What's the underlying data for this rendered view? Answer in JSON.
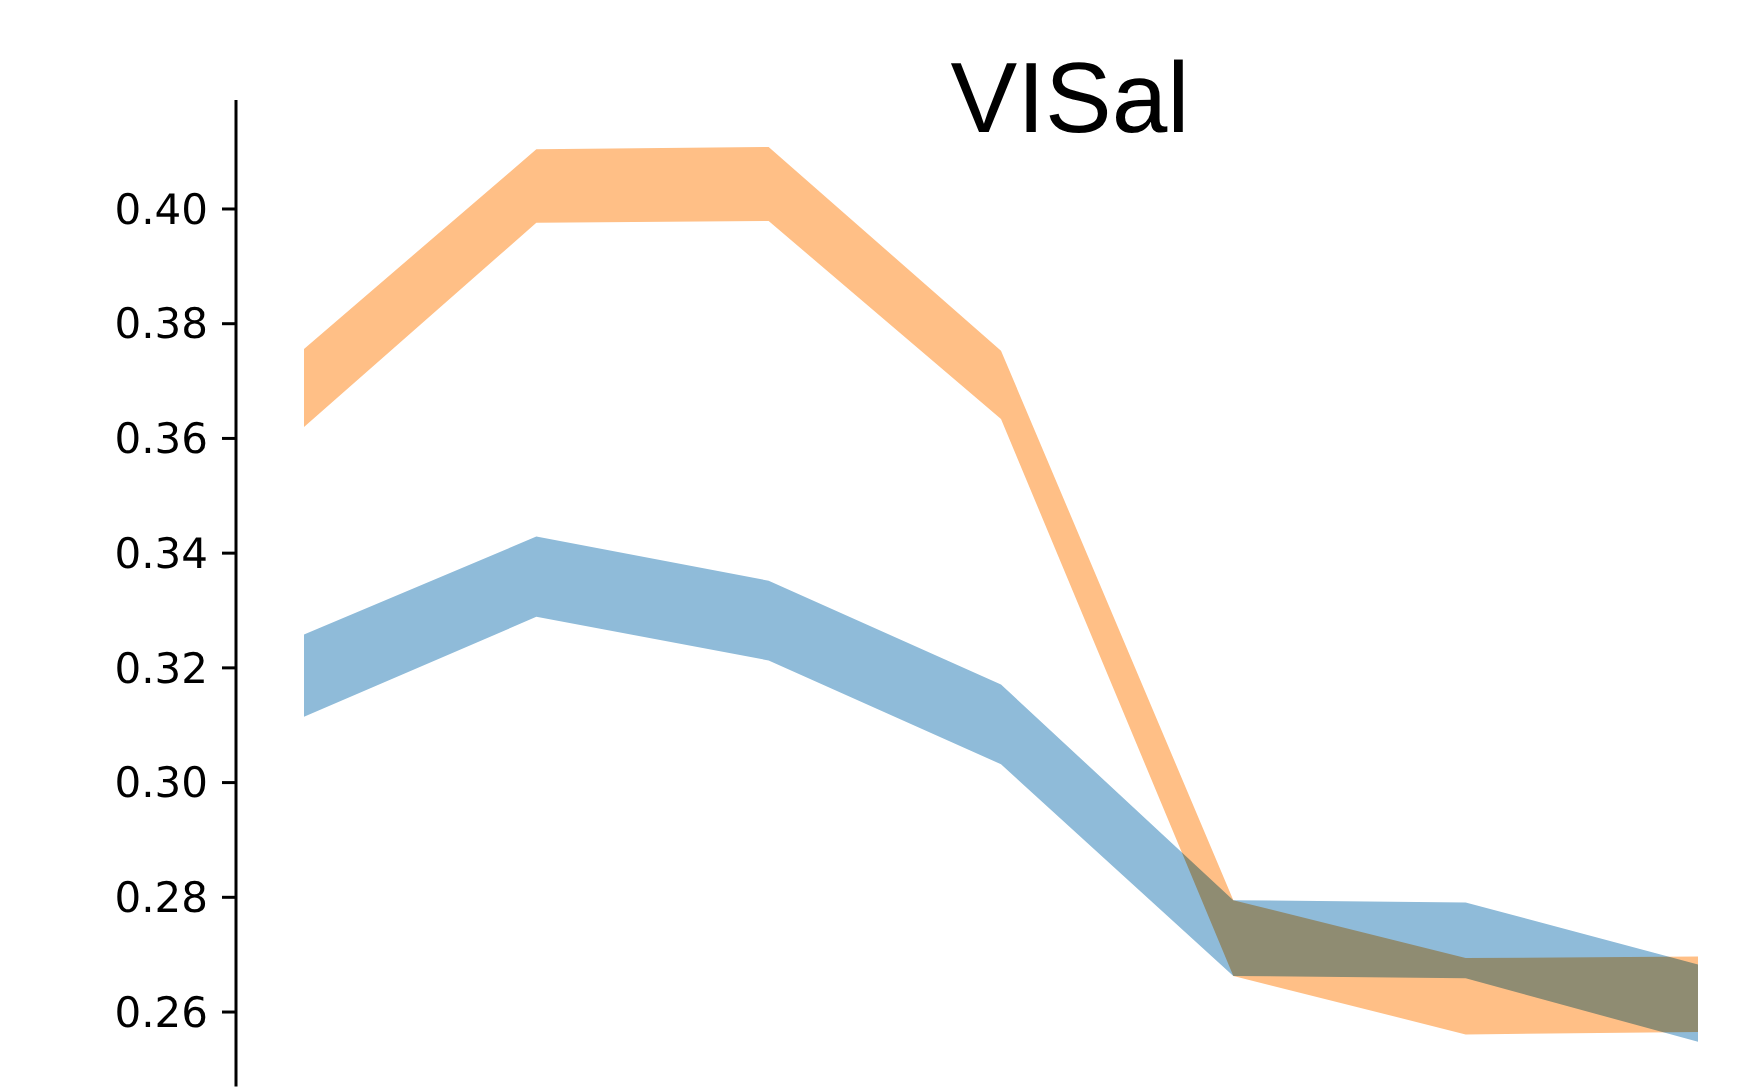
{
  "chart_data": {
    "type": "line",
    "title": "VISal",
    "categories": [
      null,
      null,
      null,
      null,
      null,
      null,
      null
    ],
    "ylim": [
      0.247,
      0.419
    ],
    "yticks": [
      {
        "value": 0.26,
        "label": "0.26"
      },
      {
        "value": 0.28,
        "label": "0.28"
      },
      {
        "value": 0.3,
        "label": "0.30"
      },
      {
        "value": 0.32,
        "label": "0.32"
      },
      {
        "value": 0.34,
        "label": "0.34"
      },
      {
        "value": 0.36,
        "label": "0.36"
      },
      {
        "value": 0.38,
        "label": "0.38"
      },
      {
        "value": 0.4,
        "label": "0.40"
      }
    ],
    "tick_labels": "y",
    "series": [
      {
        "color": "#8fbbd9",
        "values": [
          null,
          null,
          null,
          null,
          null,
          null,
          null
        ],
        "lower": [
          0.3115,
          0.3289,
          0.3213,
          0.3032,
          0.2663,
          0.2659,
          0.2548
        ],
        "upper": [
          0.3258,
          0.3429,
          0.3352,
          0.3171,
          0.2795,
          0.2791,
          0.2683
        ]
      },
      {
        "color": "#ffbf86",
        "values": [
          null,
          null,
          null,
          null,
          null,
          null,
          null
        ],
        "lower": [
          0.362,
          0.3976,
          0.3979,
          0.3634,
          0.2663,
          0.2561,
          0.2565
        ],
        "upper": [
          0.3756,
          0.4104,
          0.4108,
          0.3753,
          0.2795,
          0.2694,
          0.2697
        ]
      }
    ]
  }
}
